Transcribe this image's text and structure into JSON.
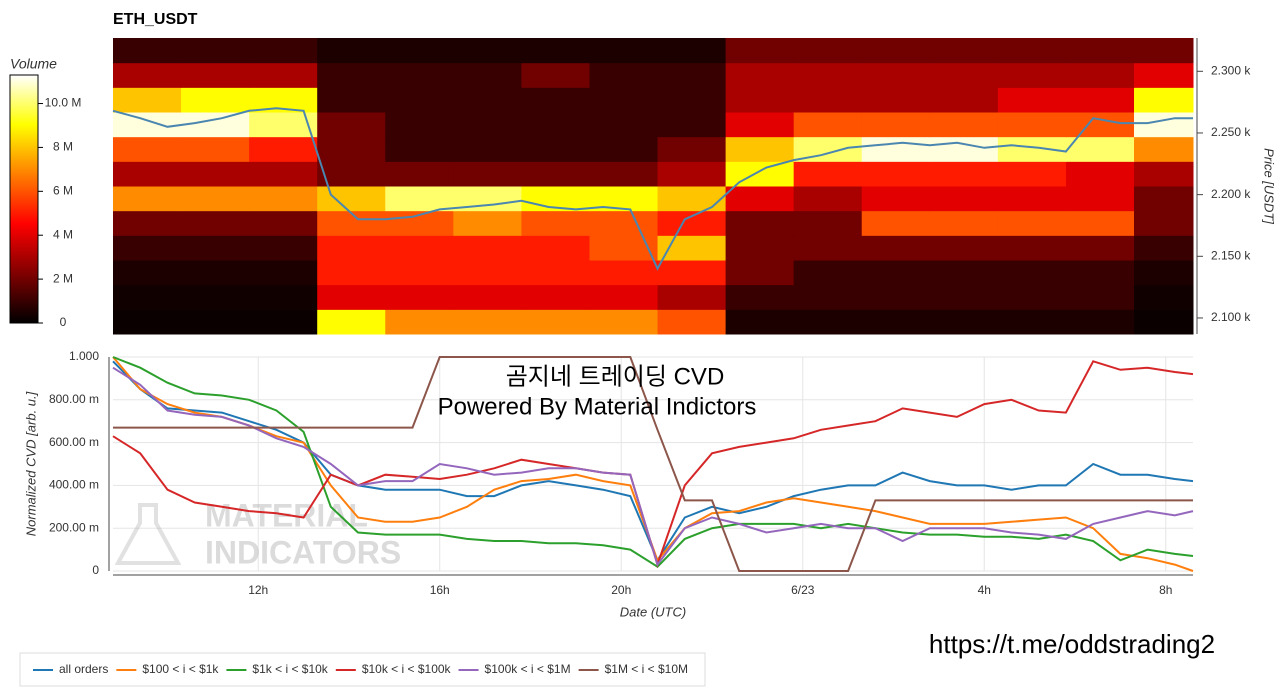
{
  "chart_data": [
    {
      "type": "heatmap",
      "title": "ETH_USDT",
      "colorbar_title": "Volume",
      "y_label": "Price [USDT]",
      "xlim": [
        8.8,
        32.6
      ],
      "ylim": [
        2087,
        2327
      ],
      "yticks": [
        {
          "value": 2100,
          "label": "2.100 k"
        },
        {
          "value": 2150,
          "label": "2.150 k"
        },
        {
          "value": 2200,
          "label": "2.200 k"
        },
        {
          "value": 2250,
          "label": "2.250 k"
        },
        {
          "value": 2300,
          "label": "2.300 k"
        }
      ],
      "zlim": [
        0,
        11.3
      ],
      "zticks": [
        0,
        {
          "value": 2,
          "label": "2 M"
        },
        {
          "value": 4,
          "label": "4 M"
        },
        {
          "value": 6,
          "label": "6 M"
        },
        {
          "value": 8,
          "label": "8 M"
        },
        {
          "value": 10,
          "label": "10.0 M"
        }
      ],
      "x_bins": [
        8.8,
        10.3,
        11.8,
        13.3,
        14.8,
        16.3,
        17.8,
        19.3,
        20.8,
        22.3,
        23.8,
        25.3,
        26.8,
        28.3,
        29.8,
        31.3,
        32.6
      ],
      "y_bins": [
        2087,
        2107,
        2127,
        2147,
        2167,
        2187,
        2207,
        2227,
        2247,
        2267,
        2287,
        2307,
        2327
      ],
      "z": [
        [
          0.2,
          0.2,
          0.2,
          9,
          7,
          7,
          7,
          7,
          6,
          0.5,
          0.5,
          0.5,
          0.5,
          0.5,
          0.5,
          0.2
        ],
        [
          0.3,
          0.3,
          0.3,
          4,
          4,
          4,
          4,
          4,
          3,
          1,
          1,
          1,
          1,
          1,
          1,
          0.3
        ],
        [
          0.5,
          0.5,
          0.5,
          5,
          5,
          5,
          5,
          5,
          5,
          2,
          1,
          1,
          1,
          1,
          1,
          0.5
        ],
        [
          1,
          1,
          1,
          5,
          5,
          5,
          5,
          6,
          8,
          2,
          2,
          2,
          2,
          2,
          2,
          1
        ],
        [
          2,
          2,
          2,
          6,
          6,
          7,
          6,
          6,
          5,
          2,
          2,
          6,
          6,
          6,
          6,
          2
        ],
        [
          7,
          7,
          7,
          8,
          10,
          10,
          9,
          9,
          8,
          4,
          3,
          4,
          4,
          4,
          4,
          2
        ],
        [
          3,
          3,
          3,
          2,
          2,
          2,
          2,
          2,
          3,
          9,
          5,
          5,
          5,
          5,
          4,
          3
        ],
        [
          6,
          6,
          5,
          2,
          1,
          1,
          1,
          1,
          2,
          8,
          10,
          11,
          11,
          10,
          10,
          7
        ],
        [
          11,
          11,
          10,
          2,
          1,
          1,
          1,
          1,
          1,
          4,
          6,
          6,
          6,
          6,
          6,
          11
        ],
        [
          8,
          9,
          9,
          1,
          1,
          1,
          1,
          1,
          1,
          3,
          3,
          3,
          3,
          4,
          4,
          9
        ],
        [
          3,
          3,
          3,
          1,
          1,
          1,
          2,
          1,
          1,
          3,
          3,
          3,
          3,
          3,
          3,
          4
        ],
        [
          1,
          1,
          1,
          0.5,
          0.5,
          0.5,
          0.5,
          0.5,
          0.5,
          2,
          2,
          2,
          2,
          2,
          2,
          2
        ]
      ],
      "line": {
        "color": "#4a86b0",
        "x": [
          8.8,
          9.4,
          10.0,
          10.6,
          11.2,
          11.8,
          12.4,
          13.0,
          13.6,
          14.2,
          14.8,
          15.4,
          16.0,
          16.6,
          17.2,
          17.8,
          18.4,
          19.0,
          19.6,
          20.2,
          20.8,
          21.4,
          22.0,
          22.6,
          23.2,
          23.8,
          24.4,
          25.0,
          25.6,
          26.2,
          26.8,
          27.4,
          28.0,
          28.6,
          29.2,
          29.8,
          30.4,
          31.0,
          31.6,
          32.2,
          32.6
        ],
        "values": [
          2268,
          2262,
          2255,
          2258,
          2262,
          2268,
          2270,
          2268,
          2200,
          2180,
          2180,
          2182,
          2188,
          2190,
          2192,
          2195,
          2190,
          2188,
          2190,
          2188,
          2140,
          2180,
          2190,
          2210,
          2222,
          2228,
          2232,
          2238,
          2240,
          2242,
          2240,
          2242,
          2238,
          2240,
          2238,
          2235,
          2262,
          2258,
          2258,
          2262,
          2262
        ]
      }
    },
    {
      "type": "line",
      "x_label": "Date (UTC)",
      "y_label": "Normalized CVD [arb. u.]",
      "xlim": [
        8.8,
        32.6
      ],
      "ylim": [
        0,
        1
      ],
      "xticks": [
        {
          "value": 12,
          "label": "12h"
        },
        {
          "value": 16,
          "label": "16h"
        },
        {
          "value": 20,
          "label": "20h"
        },
        {
          "value": 24,
          "label": "6/23"
        },
        {
          "value": 28,
          "label": "4h"
        },
        {
          "value": 32,
          "label": "8h"
        }
      ],
      "yticks": [
        0,
        {
          "value": 0.2,
          "label": "200.00 m"
        },
        {
          "value": 0.4,
          "label": "400.00 m"
        },
        {
          "value": 0.6,
          "label": "600.00 m"
        },
        {
          "value": 0.8,
          "label": "800.00 m"
        },
        {
          "value": 1,
          "label": "1.000"
        }
      ],
      "grid": true,
      "annotations": [
        "곰지네 트레이딩 CVD",
        "Powered By Material Indictors"
      ],
      "watermark": [
        "MATERIAL",
        "INDICATORS"
      ],
      "link": "https://t.me/oddstrading2",
      "x": [
        8.8,
        9.4,
        10.0,
        10.6,
        11.2,
        11.8,
        12.4,
        13.0,
        13.6,
        14.2,
        14.8,
        15.4,
        16.0,
        16.6,
        17.2,
        17.8,
        18.4,
        19.0,
        19.6,
        20.2,
        20.8,
        21.4,
        22.0,
        22.6,
        23.2,
        23.8,
        24.4,
        25.0,
        25.6,
        26.2,
        26.8,
        27.4,
        28.0,
        28.6,
        29.2,
        29.8,
        30.4,
        31.0,
        31.6,
        32.2,
        32.6
      ],
      "series": [
        {
          "name": "all orders",
          "color": "#1f77b4",
          "values": [
            0.98,
            0.85,
            0.76,
            0.75,
            0.74,
            0.7,
            0.66,
            0.6,
            0.45,
            0.4,
            0.38,
            0.38,
            0.38,
            0.35,
            0.35,
            0.4,
            0.42,
            0.4,
            0.38,
            0.35,
            0.05,
            0.25,
            0.3,
            0.27,
            0.3,
            0.35,
            0.38,
            0.4,
            0.4,
            0.46,
            0.42,
            0.4,
            0.4,
            0.38,
            0.4,
            0.4,
            0.5,
            0.45,
            0.45,
            0.43,
            0.42
          ]
        },
        {
          "name": "$100 < i < $1k",
          "color": "#ff7f0e",
          "values": [
            1.0,
            0.85,
            0.78,
            0.74,
            0.72,
            0.68,
            0.63,
            0.6,
            0.4,
            0.25,
            0.23,
            0.23,
            0.25,
            0.3,
            0.38,
            0.42,
            0.43,
            0.45,
            0.42,
            0.4,
            0.05,
            0.2,
            0.27,
            0.28,
            0.32,
            0.34,
            0.32,
            0.3,
            0.28,
            0.25,
            0.22,
            0.22,
            0.22,
            0.23,
            0.24,
            0.25,
            0.2,
            0.08,
            0.06,
            0.03,
            0.0
          ]
        },
        {
          "name": "$1k < i < $10k",
          "color": "#2ca02c",
          "values": [
            1.0,
            0.95,
            0.88,
            0.83,
            0.82,
            0.8,
            0.75,
            0.65,
            0.3,
            0.18,
            0.17,
            0.17,
            0.17,
            0.15,
            0.14,
            0.14,
            0.13,
            0.13,
            0.12,
            0.1,
            0.02,
            0.15,
            0.2,
            0.22,
            0.22,
            0.22,
            0.2,
            0.22,
            0.2,
            0.18,
            0.17,
            0.17,
            0.16,
            0.16,
            0.15,
            0.17,
            0.14,
            0.05,
            0.1,
            0.08,
            0.07
          ]
        },
        {
          "name": "$10k < i < $100k",
          "color": "#d62728",
          "values": [
            0.63,
            0.55,
            0.38,
            0.32,
            0.3,
            0.28,
            0.27,
            0.25,
            0.45,
            0.4,
            0.45,
            0.44,
            0.43,
            0.45,
            0.48,
            0.52,
            0.5,
            0.48,
            0.46,
            0.45,
            0.03,
            0.4,
            0.55,
            0.58,
            0.6,
            0.62,
            0.66,
            0.68,
            0.7,
            0.76,
            0.74,
            0.72,
            0.78,
            0.8,
            0.75,
            0.74,
            0.98,
            0.94,
            0.95,
            0.93,
            0.92
          ]
        },
        {
          "name": "$100k < i < $1M",
          "color": "#9467bd",
          "values": [
            0.95,
            0.87,
            0.75,
            0.73,
            0.72,
            0.68,
            0.62,
            0.58,
            0.5,
            0.4,
            0.42,
            0.42,
            0.5,
            0.48,
            0.45,
            0.46,
            0.48,
            0.48,
            0.46,
            0.45,
            0.03,
            0.2,
            0.25,
            0.22,
            0.18,
            0.2,
            0.22,
            0.2,
            0.2,
            0.14,
            0.2,
            0.2,
            0.2,
            0.18,
            0.17,
            0.15,
            0.22,
            0.25,
            0.28,
            0.26,
            0.28
          ]
        },
        {
          "name": "$1M < i < $10M",
          "color": "#8c564b",
          "values": [
            0.67,
            0.67,
            0.67,
            0.67,
            0.67,
            0.67,
            0.67,
            0.67,
            0.67,
            0.67,
            0.67,
            0.67,
            1.0,
            1.0,
            1.0,
            1.0,
            1.0,
            1.0,
            1.0,
            1.0,
            0.66,
            0.33,
            0.33,
            0.0,
            0.0,
            0.0,
            0.0,
            0.0,
            0.33,
            0.33,
            0.33,
            0.33,
            0.33,
            0.33,
            0.33,
            0.33,
            0.33,
            0.33,
            0.33,
            0.33,
            0.33
          ]
        }
      ]
    }
  ]
}
